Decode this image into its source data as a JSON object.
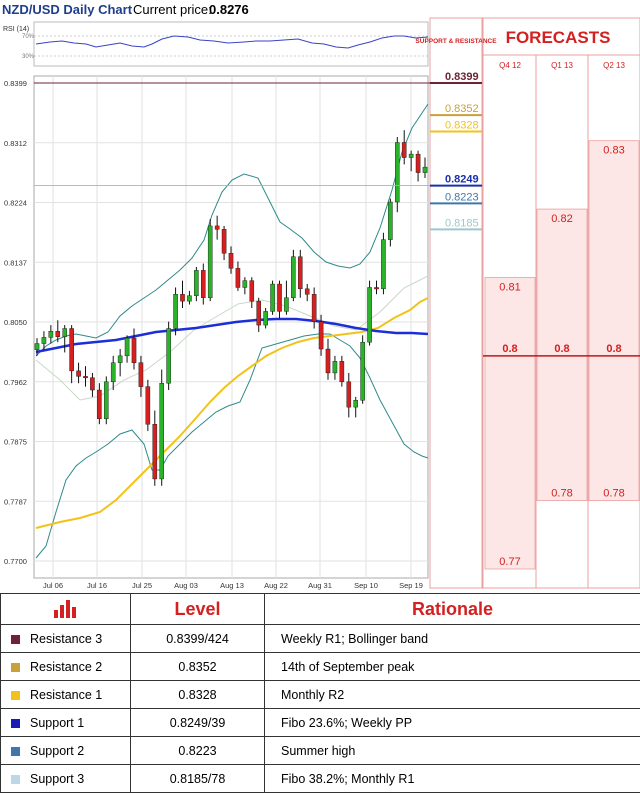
{
  "header": {
    "title": "NZD/USD Daily Chart",
    "price_label": "Current price:",
    "price_value": "0.8276"
  },
  "rsi": {
    "label": "RSI (14)",
    "levels": [
      "70%",
      "30%"
    ]
  },
  "support_header": "SUPPORT & RESISTANCE",
  "forecasts_title": "FORECASTS",
  "colors": {
    "up": "#2ab32a",
    "down": "#d62020",
    "sma_blue": "#1c2fd6",
    "sma_yellow": "#f2c21b",
    "bollinger": "#2f8a8a",
    "accent": "#d42020"
  },
  "levels": [
    {
      "value": "0.8399",
      "color": "#6b2434"
    },
    {
      "value": "0.8352",
      "color": "#c9a13a"
    },
    {
      "value": "0.8328",
      "color": "#f2c21b"
    },
    {
      "value": "0.8249",
      "color": "#1a2fa8"
    },
    {
      "value": "0.8223",
      "color": "#3f78a8"
    },
    {
      "value": "0.8185",
      "color": "#9ec8cc"
    }
  ],
  "forecast_columns": [
    {
      "label": "Q4 12",
      "high": "0.81",
      "mid": "0.8",
      "low": "0.77"
    },
    {
      "label": "Q1 13",
      "high": "0.82",
      "mid": "0.8",
      "low": "0.78"
    },
    {
      "label": "Q2 13",
      "high": "0.83",
      "mid": "0.8",
      "low": "0.78"
    }
  ],
  "table": {
    "headers": [
      "Level",
      "Rationale"
    ],
    "rows": [
      {
        "name": "Resistance 3",
        "level": "0.8399/424",
        "rationale": "Weekly R1; Bollinger band",
        "color": "#6b2434"
      },
      {
        "name": "Resistance 2",
        "level": "0.8352",
        "rationale": "14th of September peak",
        "color": "#c9a13a"
      },
      {
        "name": "Resistance 1",
        "level": "0.8328",
        "rationale": "Monthly R2",
        "color": "#f2c21b"
      },
      {
        "name": "Support 1",
        "level": "0.8249/39",
        "rationale": "Fibo 23.6%; Weekly PP",
        "color": "#1a1ab8"
      },
      {
        "name": "Support 2",
        "level": "0.8223",
        "rationale": "Summer high",
        "color": "#3f78a8"
      },
      {
        "name": "Support 3",
        "level": "0.8185/78",
        "rationale": "Fibo 38.2%; Monthly R1",
        "color": "#bcd8e8"
      }
    ]
  },
  "chart_data": {
    "type": "candlestick",
    "title": "NZD/USD Daily Chart",
    "ylim": [
      0.77,
      0.8399
    ],
    "y_ticks": [
      "0.8399",
      "0.8312",
      "0.8224",
      "0.8137",
      "0.8050",
      "0.7962",
      "0.7875",
      "0.7787",
      "0.7700"
    ],
    "x_ticks": [
      "Jul 06",
      "Jul 16",
      "Jul 25",
      "Aug 03",
      "Aug 13",
      "Aug 22",
      "Aug 31",
      "Sep 10",
      "Sep 19"
    ],
    "candles": [
      [
        0.8009,
        0.8026,
        0.8,
        0.8018
      ],
      [
        0.8018,
        0.8036,
        0.8009,
        0.8027
      ],
      [
        0.8027,
        0.8045,
        0.8018,
        0.8036
      ],
      [
        0.8036,
        0.8052,
        0.802,
        0.8028
      ],
      [
        0.8028,
        0.8045,
        0.8005,
        0.804
      ],
      [
        0.804,
        0.8045,
        0.796,
        0.7978
      ],
      [
        0.7978,
        0.799,
        0.796,
        0.797
      ],
      [
        0.797,
        0.7985,
        0.7955,
        0.7968
      ],
      [
        0.7968,
        0.7975,
        0.794,
        0.795
      ],
      [
        0.795,
        0.796,
        0.79,
        0.7908
      ],
      [
        0.7908,
        0.797,
        0.79,
        0.7962
      ],
      [
        0.7962,
        0.8,
        0.795,
        0.799
      ],
      [
        0.799,
        0.801,
        0.797,
        0.8
      ],
      [
        0.8,
        0.803,
        0.799,
        0.8026
      ],
      [
        0.8026,
        0.804,
        0.798,
        0.799
      ],
      [
        0.799,
        0.8,
        0.794,
        0.7955
      ],
      [
        0.7955,
        0.7965,
        0.789,
        0.79
      ],
      [
        0.79,
        0.792,
        0.781,
        0.782
      ],
      [
        0.782,
        0.798,
        0.781,
        0.796
      ],
      [
        0.796,
        0.805,
        0.795,
        0.804
      ],
      [
        0.804,
        0.81,
        0.803,
        0.809
      ],
      [
        0.809,
        0.811,
        0.807,
        0.808
      ],
      [
        0.808,
        0.8095,
        0.8075,
        0.8088
      ],
      [
        0.8088,
        0.813,
        0.808,
        0.8125
      ],
      [
        0.8125,
        0.8135,
        0.8075,
        0.8085
      ],
      [
        0.8085,
        0.82,
        0.808,
        0.819
      ],
      [
        0.819,
        0.8205,
        0.817,
        0.8185
      ],
      [
        0.8185,
        0.819,
        0.814,
        0.815
      ],
      [
        0.815,
        0.816,
        0.812,
        0.8128
      ],
      [
        0.8128,
        0.8138,
        0.8095,
        0.81
      ],
      [
        0.81,
        0.8115,
        0.809,
        0.811
      ],
      [
        0.811,
        0.8115,
        0.807,
        0.808
      ],
      [
        0.808,
        0.8085,
        0.8035,
        0.8045
      ],
      [
        0.8045,
        0.807,
        0.804,
        0.8065
      ],
      [
        0.8065,
        0.811,
        0.806,
        0.8105
      ],
      [
        0.8105,
        0.811,
        0.8055,
        0.8065
      ],
      [
        0.8065,
        0.811,
        0.806,
        0.8085
      ],
      [
        0.8085,
        0.8155,
        0.808,
        0.8145
      ],
      [
        0.8145,
        0.8155,
        0.8085,
        0.8098
      ],
      [
        0.8098,
        0.8105,
        0.808,
        0.809
      ],
      [
        0.809,
        0.81,
        0.804,
        0.805
      ],
      [
        0.805,
        0.806,
        0.8,
        0.801
      ],
      [
        0.801,
        0.8025,
        0.7965,
        0.7975
      ],
      [
        0.7975,
        0.8,
        0.7965,
        0.7992
      ],
      [
        0.7992,
        0.8,
        0.7955,
        0.7962
      ],
      [
        0.7962,
        0.7975,
        0.791,
        0.7925
      ],
      [
        0.7925,
        0.794,
        0.791,
        0.7935
      ],
      [
        0.7935,
        0.803,
        0.793,
        0.802
      ],
      [
        0.802,
        0.811,
        0.8015,
        0.81
      ],
      [
        0.81,
        0.811,
        0.809,
        0.8098
      ],
      [
        0.8098,
        0.818,
        0.809,
        0.817
      ],
      [
        0.817,
        0.823,
        0.816,
        0.8225
      ],
      [
        0.8225,
        0.832,
        0.821,
        0.8312
      ],
      [
        0.8312,
        0.833,
        0.828,
        0.829
      ],
      [
        0.829,
        0.83,
        0.827,
        0.8295
      ],
      [
        0.8295,
        0.83,
        0.8255,
        0.8268
      ],
      [
        0.8268,
        0.829,
        0.826,
        0.8276
      ]
    ],
    "series": []
  }
}
